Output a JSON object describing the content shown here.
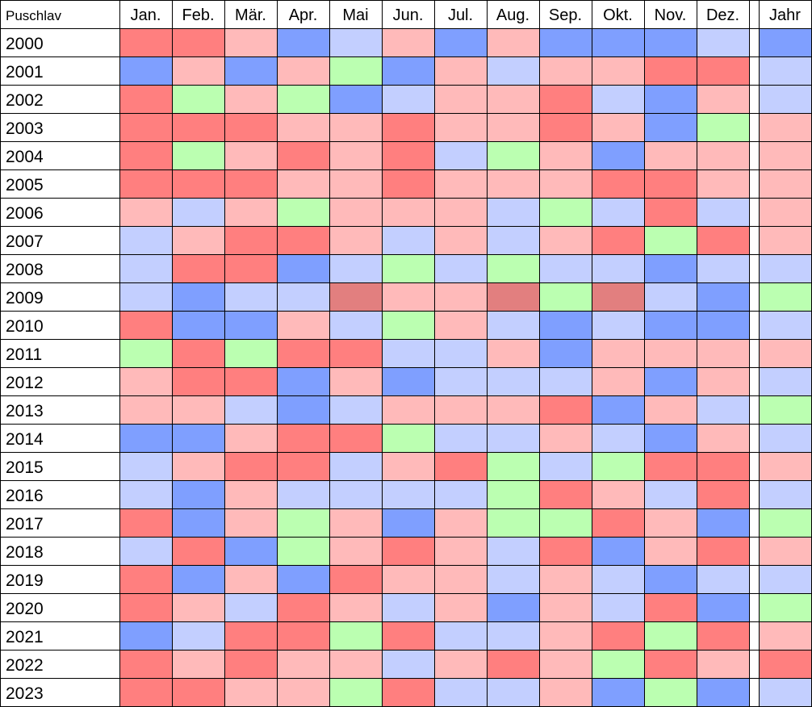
{
  "chart_data": {
    "type": "heatmap",
    "corner_label": "Puschlav",
    "columns": [
      "Jan.",
      "Feb.",
      "Mär.",
      "Apr.",
      "Mai",
      "Jun.",
      "Jul.",
      "Aug.",
      "Sep.",
      "Okt.",
      "Nov.",
      "Dez."
    ],
    "year_column": "Jahr",
    "rows": [
      "2000",
      "2001",
      "2002",
      "2003",
      "2004",
      "2005",
      "2006",
      "2007",
      "2008",
      "2009",
      "2010",
      "2011",
      "2012",
      "2013",
      "2014",
      "2015",
      "2016",
      "2017",
      "2018",
      "2019",
      "2020",
      "2021",
      "2022",
      "2023"
    ],
    "category_colors": {
      "R": "#ff7f7f",
      "P": "#ffbaba",
      "B": "#7f9fff",
      "L": "#c3cfff",
      "G": "#bbffb1",
      "D": "#e27f7f"
    },
    "cells": [
      [
        "R",
        "R",
        "P",
        "B",
        "L",
        "P",
        "B",
        "P",
        "B",
        "B",
        "B",
        "L",
        "B"
      ],
      [
        "B",
        "P",
        "B",
        "P",
        "G",
        "B",
        "P",
        "L",
        "P",
        "P",
        "R",
        "R",
        "L"
      ],
      [
        "R",
        "G",
        "P",
        "G",
        "B",
        "L",
        "P",
        "P",
        "R",
        "L",
        "B",
        "P",
        "L"
      ],
      [
        "R",
        "R",
        "R",
        "P",
        "P",
        "R",
        "P",
        "P",
        "R",
        "P",
        "B",
        "G",
        "P"
      ],
      [
        "R",
        "G",
        "P",
        "R",
        "P",
        "R",
        "L",
        "G",
        "P",
        "B",
        "P",
        "P",
        "P"
      ],
      [
        "R",
        "R",
        "R",
        "P",
        "P",
        "R",
        "P",
        "P",
        "P",
        "R",
        "R",
        "P",
        "P"
      ],
      [
        "P",
        "L",
        "P",
        "G",
        "P",
        "P",
        "P",
        "L",
        "G",
        "L",
        "R",
        "L",
        "P"
      ],
      [
        "L",
        "P",
        "R",
        "R",
        "P",
        "L",
        "P",
        "L",
        "P",
        "R",
        "G",
        "R",
        "P"
      ],
      [
        "L",
        "R",
        "R",
        "B",
        "L",
        "G",
        "L",
        "G",
        "L",
        "L",
        "B",
        "L",
        "L"
      ],
      [
        "L",
        "B",
        "L",
        "L",
        "D",
        "P",
        "P",
        "D",
        "G",
        "D",
        "L",
        "B",
        "G"
      ],
      [
        "R",
        "B",
        "B",
        "P",
        "L",
        "G",
        "P",
        "L",
        "B",
        "L",
        "B",
        "B",
        "L"
      ],
      [
        "G",
        "R",
        "G",
        "R",
        "R",
        "L",
        "L",
        "P",
        "B",
        "P",
        "P",
        "P",
        "P"
      ],
      [
        "P",
        "R",
        "R",
        "B",
        "P",
        "B",
        "L",
        "L",
        "L",
        "P",
        "B",
        "P",
        "L"
      ],
      [
        "P",
        "P",
        "L",
        "B",
        "L",
        "P",
        "P",
        "P",
        "R",
        "B",
        "P",
        "L",
        "G"
      ],
      [
        "B",
        "B",
        "P",
        "R",
        "R",
        "G",
        "L",
        "L",
        "P",
        "L",
        "B",
        "P",
        "L"
      ],
      [
        "L",
        "P",
        "R",
        "R",
        "L",
        "P",
        "R",
        "G",
        "L",
        "G",
        "R",
        "R",
        "P"
      ],
      [
        "L",
        "B",
        "P",
        "L",
        "L",
        "L",
        "L",
        "G",
        "R",
        "P",
        "L",
        "R",
        "L"
      ],
      [
        "R",
        "B",
        "P",
        "G",
        "P",
        "B",
        "P",
        "G",
        "G",
        "R",
        "P",
        "B",
        "G"
      ],
      [
        "L",
        "R",
        "B",
        "G",
        "P",
        "R",
        "P",
        "L",
        "R",
        "B",
        "P",
        "R",
        "P"
      ],
      [
        "R",
        "B",
        "P",
        "B",
        "R",
        "P",
        "P",
        "L",
        "P",
        "L",
        "B",
        "L",
        "L"
      ],
      [
        "R",
        "P",
        "L",
        "R",
        "P",
        "L",
        "P",
        "B",
        "P",
        "L",
        "R",
        "B",
        "G"
      ],
      [
        "B",
        "L",
        "R",
        "R",
        "G",
        "R",
        "L",
        "L",
        "P",
        "R",
        "G",
        "R",
        "P"
      ],
      [
        "R",
        "P",
        "R",
        "P",
        "P",
        "L",
        "P",
        "R",
        "P",
        "G",
        "R",
        "P",
        "R"
      ],
      [
        "R",
        "R",
        "P",
        "P",
        "G",
        "R",
        "L",
        "L",
        "P",
        "B",
        "G",
        "B",
        "L"
      ]
    ]
  }
}
